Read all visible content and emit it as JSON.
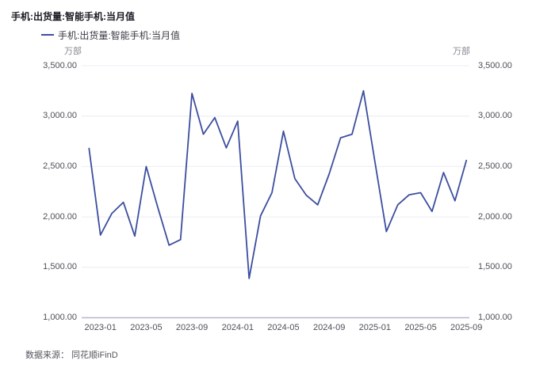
{
  "header": {
    "title": "手机:出货量:智能手机:当月值"
  },
  "legend": {
    "label": "手机:出货量:智能手机:当月值"
  },
  "axes": {
    "unit_left": "万部",
    "unit_right": "万部"
  },
  "footer": {
    "source": "数据来源： 同花顺iFinD"
  },
  "colors": {
    "line": "#3C4E9E",
    "gridline": "#ececf4",
    "axis_line": "#b6b6ce",
    "tick_text": "#4f4f59"
  },
  "chart_data": {
    "type": "line",
    "title": "手机:出货量:智能手机:当月值",
    "series_name": "手机:出货量:智能手机:当月值",
    "unit": "万部",
    "x": [
      "2022-12",
      "2023-01",
      "2023-02",
      "2023-03",
      "2023-04",
      "2023-05",
      "2023-06",
      "2023-07",
      "2023-08",
      "2023-09",
      "2023-10",
      "2023-11",
      "2023-12",
      "2024-01",
      "2024-02",
      "2024-03",
      "2024-04",
      "2024-05",
      "2024-06",
      "2024-07",
      "2024-08",
      "2024-09",
      "2024-10",
      "2024-11",
      "2024-12",
      "2025-01",
      "2025-02",
      "2025-03",
      "2025-04",
      "2025-05",
      "2025-06",
      "2025-07",
      "2025-08",
      "2025-09"
    ],
    "values": [
      2680,
      1820,
      2035,
      2145,
      1810,
      2500,
      2100,
      1720,
      1775,
      3225,
      2820,
      2985,
      2685,
      2950,
      1390,
      2010,
      2240,
      2850,
      2380,
      2215,
      2120,
      2425,
      2785,
      2820,
      3250,
      2550,
      1855,
      2120,
      2220,
      2240,
      2055,
      2440,
      2160,
      2560
    ],
    "x_tick_labels": [
      "2023-01",
      "2023-05",
      "2023-09",
      "2024-01",
      "2024-05",
      "2024-09",
      "2025-01",
      "2025-05",
      "2025-09"
    ],
    "y_ticks": [
      1000,
      1500,
      2000,
      2500,
      3000,
      3500
    ],
    "y_tick_labels": [
      "1,000.00",
      "1,500.00",
      "2,000.00",
      "2,500.00",
      "3,000.00",
      "3,500.00"
    ],
    "ylim": [
      1000,
      3500
    ],
    "grid": true,
    "legend_position": "top-left"
  }
}
